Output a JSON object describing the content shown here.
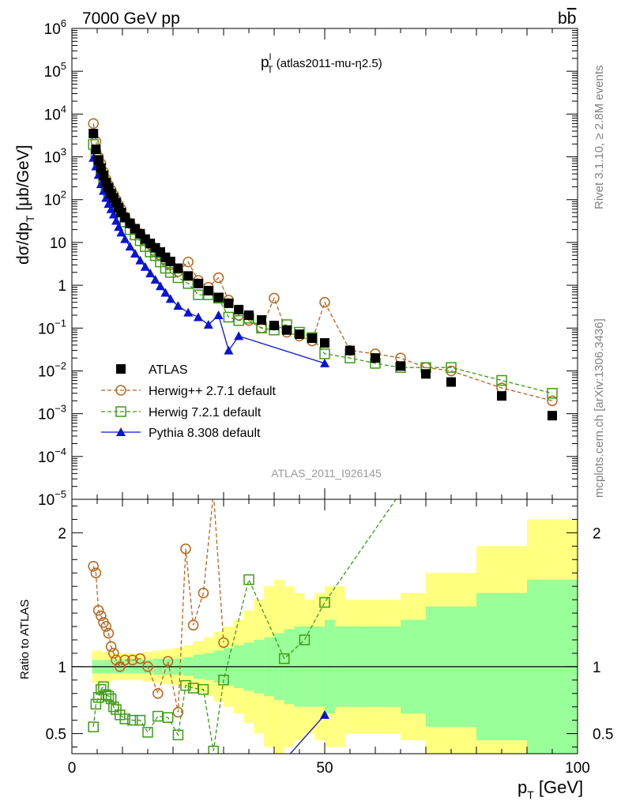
{
  "header": {
    "left": "7000 GeV pp",
    "right_main": "b",
    "right_bar": "b"
  },
  "side_labels": {
    "rivet": "Rivet 3.1.10, ≥ 2.8M events",
    "mcplots": "mcplots.cern.ch [arXiv:1306.3436]"
  },
  "watermark": "ATLAS_2011_I926145",
  "chart_data": [
    {
      "type": "scatter",
      "title_main": "p",
      "title_sup": "l",
      "title_sub": "T",
      "title_rest": " (atlas2011-mu-η2.5)",
      "ylabel": "dσ/dp_T [μb/GeV]",
      "ylabel_parts": {
        "a": "dσ/dp",
        "sub": "T",
        "b": " [μb/GeV]"
      },
      "xlim": [
        0,
        100
      ],
      "ylim": [
        1e-05,
        1000000.0
      ],
      "yscale": "log",
      "ytick_labels": [
        {
          "v": 1000000.0,
          "mant": "10",
          "exp": "6"
        },
        {
          "v": 100000.0,
          "mant": "10",
          "exp": "5"
        },
        {
          "v": 10000.0,
          "mant": "10",
          "exp": "4"
        },
        {
          "v": 1000.0,
          "mant": "10",
          "exp": "3"
        },
        {
          "v": 100,
          "mant": "10",
          "exp": "2"
        },
        {
          "v": 10,
          "mant": "10",
          "exp": ""
        },
        {
          "v": 1,
          "mant": "1",
          "exp": ""
        },
        {
          "v": 0.1,
          "mant": "10",
          "exp": "−1"
        },
        {
          "v": 0.01,
          "mant": "10",
          "exp": "−2"
        },
        {
          "v": 0.001,
          "mant": "10",
          "exp": "−3"
        },
        {
          "v": 0.0001,
          "mant": "10",
          "exp": "−4"
        },
        {
          "v": 1e-05,
          "mant": "10",
          "exp": "−5"
        }
      ],
      "legend_position": "lower-left",
      "series": [
        {
          "name": "ATLAS",
          "color": "#000000",
          "marker": "square-filled",
          "x": [
            4.25,
            4.75,
            5.25,
            5.75,
            6.25,
            6.75,
            7.25,
            7.75,
            8.25,
            8.75,
            9.25,
            9.75,
            10.5,
            11.5,
            12.5,
            13.5,
            14.5,
            15.5,
            16.5,
            17.5,
            18.5,
            19.5,
            21,
            23,
            25,
            27,
            29,
            31,
            33,
            35,
            37.5,
            40,
            42.5,
            45,
            47.5,
            50,
            55,
            60,
            65,
            70,
            75,
            85,
            95
          ],
          "y": [
            3500,
            1500,
            850,
            550,
            370,
            250,
            190,
            140,
            110,
            85,
            65,
            50,
            38,
            28,
            21,
            16,
            12,
            9.5,
            7.5,
            6,
            4.5,
            3.6,
            2.5,
            1.65,
            1.1,
            0.75,
            0.52,
            0.38,
            0.27,
            0.2,
            0.155,
            0.115,
            0.09,
            0.072,
            0.058,
            0.045,
            0.03,
            0.02,
            0.013,
            0.0085,
            0.0055,
            0.0026,
            0.0009
          ]
        },
        {
          "name": "Herwig++ 2.7.1 default",
          "color": "#b5651d",
          "marker": "circle-open",
          "dashed": true,
          "x": [
            4.25,
            4.75,
            5.25,
            5.75,
            6.25,
            6.75,
            7.25,
            7.75,
            8.25,
            8.75,
            9.25,
            9.75,
            10.5,
            11.5,
            12.5,
            13.5,
            14.5,
            15.5,
            16.5,
            17.5,
            18.5,
            19.5,
            21,
            23,
            25,
            27,
            29,
            31,
            33,
            35,
            37.5,
            40,
            42.5,
            45,
            47.5,
            50,
            55,
            60,
            65,
            70,
            75,
            85,
            95
          ],
          "y": [
            6000,
            2300,
            1000,
            700,
            450,
            300,
            220,
            170,
            130,
            100,
            75,
            60,
            40,
            28,
            20,
            16,
            11,
            9,
            6,
            5,
            3.8,
            3,
            2.1,
            3.5,
            1.3,
            0.9,
            1.5,
            0.45,
            0.2,
            0.15,
            0.1,
            0.5,
            0.08,
            0.065,
            0.05,
            0.4,
            0.03,
            0.025,
            0.02,
            0.012,
            0.01,
            0.004,
            0.002
          ]
        },
        {
          "name": "Herwig 7.2.1 default",
          "color": "#3c9b14",
          "marker": "square-open",
          "dashed": true,
          "x": [
            4.25,
            4.75,
            5.25,
            5.75,
            6.25,
            6.75,
            7.25,
            7.75,
            8.25,
            8.75,
            9.25,
            9.75,
            10.5,
            11.5,
            12.5,
            13.5,
            14.5,
            15.5,
            16.5,
            17.5,
            18.5,
            19.5,
            21,
            23,
            25,
            27,
            29,
            31,
            33,
            35,
            37.5,
            40,
            42.5,
            45,
            47.5,
            50,
            55,
            60,
            65,
            70,
            75,
            85,
            95
          ],
          "y": [
            1950,
            1100,
            650,
            420,
            300,
            200,
            150,
            120,
            88,
            68,
            52,
            40,
            30,
            20,
            15,
            11,
            8,
            6,
            4.9,
            3.5,
            2.5,
            2,
            1.5,
            1.1,
            0.6,
            0.6,
            0.5,
            0.18,
            0.15,
            0.17,
            0.1,
            0.09,
            0.12,
            0.08,
            0.06,
            0.025,
            0.02,
            0.015,
            0.012,
            0.012,
            0.012,
            0.006,
            0.003
          ]
        },
        {
          "name": "Pythia 8.308 default",
          "color": "#0a14d2",
          "marker": "triangle-filled",
          "x": [
            4.25,
            4.75,
            5.25,
            5.75,
            6.25,
            6.75,
            7.25,
            7.75,
            8.25,
            8.75,
            9.25,
            9.75,
            10.5,
            11.5,
            12.5,
            13.5,
            14.5,
            15.5,
            16.5,
            17.5,
            18.5,
            19.5,
            21,
            23,
            25,
            27,
            29,
            31,
            33,
            50
          ],
          "y": [
            950,
            600,
            380,
            230,
            160,
            110,
            80,
            60,
            45,
            32,
            23,
            17,
            12,
            8,
            5.5,
            3.8,
            2.7,
            1.9,
            1.35,
            0.95,
            0.67,
            0.48,
            0.33,
            0.23,
            0.18,
            0.12,
            0.2,
            0.03,
            0.065,
            0.015
          ]
        }
      ]
    },
    {
      "type": "scatter",
      "ylabel": "Ratio to ATLAS",
      "xlabel": "p_T [GeV]",
      "xlabel_parts": {
        "a": "p",
        "sub": "T",
        "b": " [GeV]"
      },
      "xlim": [
        0,
        100
      ],
      "ylim": [
        0.35,
        2.25
      ],
      "ytick_labels": [
        "0.5",
        "1",
        "2"
      ],
      "xtick_labels": [
        "0",
        "50",
        "100"
      ],
      "bands": {
        "x_edges": [
          4,
          6,
          8,
          10,
          12,
          14,
          16,
          18,
          20,
          22,
          24,
          26,
          28,
          30,
          32,
          34,
          36,
          38,
          40,
          42,
          44,
          46,
          48,
          50,
          52,
          54,
          56,
          60,
          65,
          70,
          80,
          90,
          100
        ],
        "yellow_half_width": [
          0.12,
          0.11,
          0.1,
          0.1,
          0.1,
          0.11,
          0.12,
          0.13,
          0.14,
          0.16,
          0.19,
          0.22,
          0.26,
          0.3,
          0.35,
          0.42,
          0.5,
          0.6,
          0.65,
          0.6,
          0.55,
          0.5,
          0.55,
          0.6,
          0.6,
          0.5,
          0.5,
          0.5,
          0.55,
          0.7,
          0.9,
          1.1
        ],
        "green_half_width": [
          0.05,
          0.05,
          0.05,
          0.05,
          0.05,
          0.05,
          0.06,
          0.06,
          0.06,
          0.07,
          0.09,
          0.1,
          0.12,
          0.14,
          0.16,
          0.18,
          0.2,
          0.22,
          0.25,
          0.28,
          0.3,
          0.3,
          0.3,
          0.35,
          0.3,
          0.3,
          0.3,
          0.3,
          0.35,
          0.45,
          0.55,
          0.65
        ]
      },
      "series": [
        {
          "name": "Herwig++ 2.7.1 default",
          "color": "#b5651d",
          "x": [
            4.25,
            4.75,
            5.25,
            5.75,
            6.25,
            6.75,
            7.25,
            7.75,
            8.25,
            8.75,
            9.5,
            10.5,
            12,
            13.5,
            15,
            17,
            19,
            21,
            22.5,
            24,
            26,
            28,
            30
          ],
          "y": [
            1.75,
            1.7,
            1.42,
            1.38,
            1.33,
            1.3,
            1.25,
            1.15,
            1.1,
            1.05,
            1.0,
            1.05,
            1.05,
            1.06,
            1.0,
            0.8,
            1.04,
            0.66,
            1.88,
            1.31,
            1.55,
            2.3,
            1.18
          ]
        },
        {
          "name": "Herwig 7.2.1 default",
          "color": "#3c9b14",
          "x": [
            4.25,
            4.75,
            5.25,
            5.75,
            6.25,
            6.75,
            7.25,
            7.75,
            8.25,
            8.75,
            9.5,
            10.5,
            12,
            13.5,
            15,
            17,
            19,
            21,
            22.5,
            24,
            26,
            28,
            30,
            35,
            42,
            46,
            50,
            65
          ],
          "y": [
            0.55,
            0.72,
            0.77,
            0.83,
            0.85,
            0.79,
            0.78,
            0.76,
            0.7,
            0.68,
            0.64,
            0.61,
            0.6,
            0.6,
            0.51,
            0.63,
            0.62,
            0.49,
            0.86,
            0.84,
            0.83,
            0.37,
            0.9,
            1.65,
            1.06,
            1.2,
            1.48,
            2.3
          ]
        },
        {
          "name": "Pythia 8.308 default",
          "color": "#0a14d2",
          "x": [
            42,
            50
          ],
          "y": [
            0.3,
            0.64
          ]
        }
      ]
    }
  ]
}
